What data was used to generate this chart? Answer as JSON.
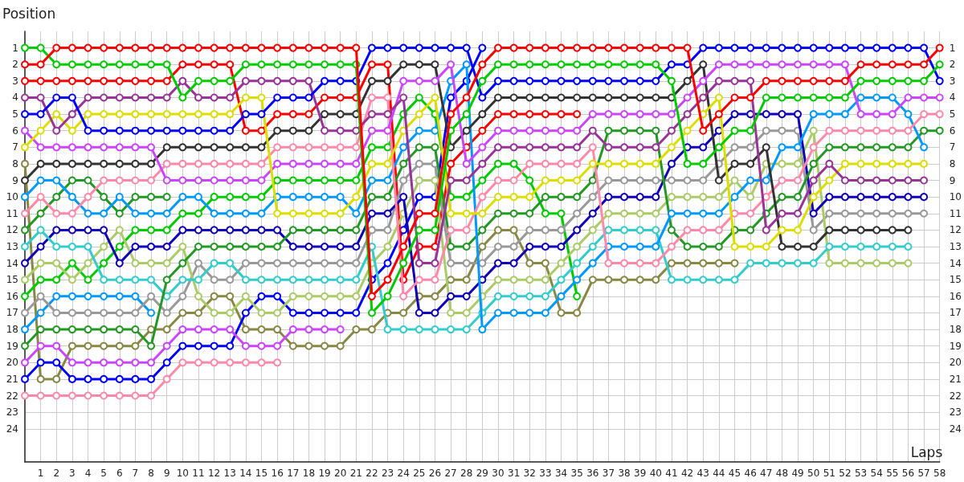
{
  "chart_data": {
    "type": "line",
    "xlabel": "Laps",
    "ylabel": "Position",
    "x": [
      0,
      1,
      2,
      3,
      4,
      5,
      6,
      7,
      8,
      9,
      10,
      11,
      12,
      13,
      14,
      15,
      16,
      17,
      18,
      19,
      20,
      21,
      22,
      23,
      24,
      25,
      26,
      27,
      28,
      29,
      30,
      31,
      32,
      33,
      34,
      35,
      36,
      37,
      38,
      39,
      40,
      41,
      42,
      43,
      44,
      45,
      46,
      47,
      48,
      49,
      50,
      51,
      52,
      53,
      54,
      55,
      56,
      57,
      58
    ],
    "xlim": [
      0,
      58
    ],
    "xticks": [
      1,
      2,
      3,
      4,
      5,
      6,
      7,
      8,
      9,
      10,
      11,
      12,
      13,
      14,
      15,
      16,
      17,
      18,
      19,
      20,
      21,
      22,
      23,
      24,
      25,
      26,
      27,
      28,
      29,
      30,
      31,
      32,
      33,
      34,
      35,
      36,
      37,
      38,
      39,
      40,
      41,
      42,
      43,
      44,
      45,
      46,
      47,
      48,
      49,
      50,
      51,
      52,
      53,
      54,
      55,
      56,
      57,
      58
    ],
    "ylim": [
      26,
      0
    ],
    "yticks": [
      1,
      2,
      3,
      4,
      5,
      6,
      7,
      8,
      9,
      10,
      11,
      12,
      13,
      14,
      15,
      16,
      17,
      18,
      19,
      20,
      21,
      22,
      23,
      24
    ],
    "y2lim": [
      26,
      0
    ],
    "y2ticks": [
      1,
      2,
      3,
      4,
      5,
      6,
      7,
      8,
      9,
      10,
      11,
      12,
      13,
      14,
      15,
      16,
      17,
      18,
      19,
      20,
      21,
      22,
      23,
      24
    ],
    "grid": true,
    "marker": "circle",
    "series": [
      {
        "color": "#888844",
        "values": [
          8,
          21,
          21,
          19,
          19,
          19,
          19,
          19,
          18,
          18,
          17,
          17,
          16,
          16,
          18,
          18,
          18,
          19,
          19,
          19,
          19,
          18,
          18,
          17,
          17,
          16,
          16,
          15,
          15,
          13,
          12,
          12,
          14,
          14,
          17,
          17,
          15,
          15,
          15,
          15,
          15,
          14,
          14,
          14,
          14,
          14,
          null,
          null,
          null,
          null,
          null,
          null,
          null,
          null,
          null,
          null,
          null,
          null,
          null
        ]
      },
      {
        "color": "#ff88aa",
        "values": [
          22,
          22,
          22,
          22,
          22,
          22,
          22,
          22,
          22,
          21,
          20,
          20,
          20,
          20,
          20,
          20,
          20,
          null,
          null,
          null,
          null,
          null,
          null,
          null,
          null,
          null,
          null,
          null,
          null,
          null,
          null,
          null,
          null,
          null,
          null,
          null,
          null,
          null,
          null,
          null,
          null,
          null,
          null,
          null,
          null,
          null,
          null,
          null,
          null,
          null,
          null,
          null,
          null,
          null,
          null,
          null,
          null,
          null,
          null
        ]
      },
      {
        "color": "#0000ff",
        "values": [
          21,
          20,
          20,
          21,
          21,
          21,
          21,
          21,
          21,
          20,
          19,
          19,
          19,
          19,
          17,
          16,
          16,
          17,
          17,
          17,
          17,
          17,
          15,
          14,
          12,
          10,
          10,
          4,
          3,
          1,
          null,
          null,
          null,
          null,
          null,
          null,
          null,
          null,
          null,
          null,
          null,
          null,
          null,
          null,
          null,
          null,
          null,
          null,
          null,
          null,
          null,
          null,
          null,
          null,
          null,
          null,
          null,
          null,
          null
        ]
      },
      {
        "color": "#cc44ff",
        "values": [
          20,
          19,
          19,
          20,
          20,
          20,
          20,
          20,
          20,
          19,
          18,
          18,
          18,
          18,
          19,
          19,
          19,
          18,
          18,
          18,
          18,
          null,
          null,
          null,
          null,
          null,
          null,
          null,
          null,
          null,
          null,
          null,
          null,
          null,
          null,
          null,
          null,
          null,
          null,
          null,
          null,
          null,
          null,
          null,
          null,
          null,
          null,
          null,
          null,
          null,
          null,
          null,
          null,
          null,
          null,
          null,
          null,
          null,
          null
        ]
      },
      {
        "color": "#0099ff",
        "values": [
          18,
          17,
          16,
          16,
          16,
          16,
          16,
          16,
          17,
          null,
          null,
          null,
          null,
          null,
          null,
          null,
          null,
          null,
          null,
          null,
          null,
          null,
          null,
          null,
          null,
          null,
          null,
          null,
          null,
          null,
          null,
          null,
          null,
          null,
          null,
          null,
          null,
          null,
          null,
          null,
          null,
          null,
          null,
          null,
          null,
          null,
          null,
          null,
          null,
          null,
          null,
          null,
          null,
          null,
          null,
          null,
          null,
          null,
          null
        ]
      },
      {
        "color": "#229922",
        "values": [
          12,
          11,
          10,
          9,
          9,
          10,
          11,
          10,
          10,
          10,
          null,
          null,
          null,
          null,
          null,
          null,
          null,
          null,
          null,
          null,
          null,
          null,
          null,
          null,
          null,
          null,
          null,
          null,
          null,
          null,
          null,
          null,
          null,
          null,
          null,
          null,
          null,
          null,
          null,
          null,
          null,
          null,
          null,
          null,
          null,
          null,
          null,
          null,
          null,
          null,
          null,
          null,
          null,
          null,
          null,
          null,
          null,
          null,
          null
        ]
      },
      {
        "color": "#00cc00",
        "values": [
          16,
          15,
          15,
          14,
          15,
          14,
          13,
          12,
          12,
          12,
          11,
          11,
          10,
          10,
          10,
          10,
          9,
          9,
          9,
          9,
          9,
          9,
          7,
          7,
          5,
          4,
          5,
          10,
          10,
          9,
          8,
          8,
          9,
          11,
          11,
          16,
          null,
          null,
          null,
          null,
          null,
          null,
          null,
          null,
          null,
          null,
          null,
          null,
          null,
          null,
          null,
          null,
          null,
          null,
          null,
          null,
          null,
          null,
          null
        ]
      },
      {
        "color": "#ff0000",
        "values": [
          3,
          3,
          3,
          3,
          3,
          3,
          3,
          3,
          3,
          3,
          2,
          2,
          2,
          2,
          6,
          6,
          5,
          5,
          5,
          4,
          4,
          4,
          2,
          2,
          15,
          13,
          13,
          8,
          7,
          6,
          5,
          5,
          5,
          5,
          5,
          5,
          null,
          null,
          null,
          null,
          null,
          null,
          null,
          null,
          null,
          null,
          null,
          null,
          null,
          null,
          null,
          null,
          null,
          null,
          null,
          null,
          null,
          null,
          null
        ]
      },
      {
        "color": "#999999",
        "values": [
          17,
          16,
          17,
          17,
          17,
          17,
          17,
          17,
          16,
          17,
          16,
          14,
          15,
          15,
          14,
          14,
          14,
          14,
          14,
          14,
          14,
          14,
          12,
          12,
          9,
          8,
          8,
          14,
          14,
          14,
          13,
          13,
          12,
          12,
          12,
          11,
          10,
          9,
          9,
          9,
          9,
          9,
          9,
          9,
          8,
          7,
          7,
          6,
          6,
          6,
          12,
          11,
          11,
          11,
          11,
          11,
          11,
          11,
          null
        ]
      },
      {
        "color": "#aacc66",
        "values": [
          15,
          14,
          14,
          15,
          14,
          13,
          12,
          14,
          14,
          14,
          13,
          16,
          17,
          17,
          16,
          17,
          17,
          16,
          16,
          16,
          16,
          16,
          14,
          13,
          11,
          9,
          9,
          17,
          17,
          16,
          15,
          15,
          15,
          15,
          14,
          13,
          12,
          11,
          11,
          11,
          11,
          10,
          10,
          10,
          10,
          9,
          10,
          8,
          8,
          8,
          6,
          14,
          14,
          14,
          14,
          14,
          14,
          null,
          null
        ]
      },
      {
        "color": "#1100bb",
        "values": [
          14,
          13,
          12,
          12,
          12,
          12,
          14,
          13,
          13,
          13,
          12,
          12,
          12,
          12,
          12,
          12,
          12,
          13,
          13,
          13,
          13,
          13,
          11,
          11,
          10,
          17,
          17,
          16,
          16,
          15,
          14,
          14,
          13,
          13,
          13,
          12,
          11,
          10,
          10,
          10,
          10,
          8,
          7,
          7,
          6,
          5,
          5,
          5,
          5,
          5,
          11,
          10,
          10,
          10,
          10,
          10,
          10,
          10,
          null
        ]
      },
      {
        "color": "#33cccc",
        "values": [
          13,
          12,
          13,
          13,
          13,
          15,
          15,
          15,
          15,
          16,
          15,
          15,
          14,
          14,
          15,
          15,
          15,
          15,
          15,
          15,
          15,
          15,
          13,
          18,
          18,
          18,
          18,
          18,
          18,
          17,
          16,
          16,
          16,
          16,
          15,
          14,
          13,
          12,
          12,
          12,
          12,
          15,
          15,
          15,
          15,
          15,
          14,
          14,
          14,
          14,
          14,
          13,
          13,
          13,
          13,
          13,
          13,
          null,
          null
        ]
      },
      {
        "color": "#229922",
        "values": [
          19,
          18,
          18,
          18,
          18,
          18,
          18,
          18,
          19,
          15,
          14,
          13,
          13,
          13,
          13,
          13,
          13,
          12,
          12,
          12,
          12,
          12,
          10,
          10,
          8,
          7,
          7,
          13,
          13,
          12,
          11,
          11,
          11,
          10,
          10,
          10,
          9,
          6,
          6,
          6,
          6,
          12,
          13,
          13,
          13,
          12,
          12,
          11,
          10,
          10,
          8,
          7,
          7,
          7,
          7,
          7,
          7,
          6,
          6
        ]
      },
      {
        "color": "#0099ff",
        "values": [
          10,
          9,
          9,
          10,
          11,
          11,
          10,
          11,
          11,
          11,
          10,
          10,
          11,
          11,
          11,
          11,
          10,
          10,
          10,
          10,
          10,
          11,
          9,
          9,
          7,
          6,
          6,
          3,
          2,
          18,
          17,
          17,
          17,
          17,
          16,
          15,
          14,
          13,
          13,
          13,
          13,
          11,
          11,
          11,
          11,
          10,
          9,
          9,
          7,
          7,
          5,
          5,
          5,
          4,
          4,
          4,
          5,
          7,
          null
        ]
      },
      {
        "color": "#ff88aa",
        "values": [
          11,
          10,
          11,
          11,
          10,
          9,
          9,
          9,
          9,
          8,
          8,
          8,
          8,
          8,
          8,
          8,
          7,
          7,
          7,
          7,
          7,
          7,
          4,
          4,
          16,
          15,
          15,
          12,
          12,
          10,
          9,
          9,
          8,
          8,
          8,
          8,
          7,
          14,
          14,
          14,
          14,
          13,
          12,
          12,
          12,
          11,
          11,
          10,
          9,
          9,
          7,
          6,
          6,
          6,
          6,
          6,
          6,
          5,
          5
        ]
      },
      {
        "color": "#333333",
        "values": [
          9,
          8,
          8,
          8,
          8,
          8,
          8,
          8,
          8,
          7,
          7,
          7,
          7,
          7,
          7,
          7,
          6,
          6,
          6,
          5,
          5,
          5,
          3,
          3,
          2,
          2,
          2,
          7,
          6,
          5,
          4,
          4,
          4,
          4,
          4,
          4,
          4,
          4,
          4,
          4,
          4,
          4,
          3,
          2,
          9,
          8,
          8,
          7,
          13,
          13,
          13,
          12,
          12,
          12,
          12,
          12,
          12,
          null,
          null
        ]
      },
      {
        "color": "#cc44ff",
        "values": [
          6,
          7,
          7,
          7,
          7,
          7,
          7,
          7,
          7,
          9,
          9,
          9,
          9,
          9,
          9,
          9,
          8,
          8,
          8,
          8,
          8,
          8,
          6,
          6,
          3,
          3,
          3,
          2,
          8,
          7,
          6,
          6,
          6,
          6,
          6,
          6,
          5,
          5,
          5,
          5,
          5,
          5,
          4,
          3,
          2,
          2,
          2,
          2,
          2,
          2,
          2,
          2,
          2,
          5,
          5,
          5,
          4,
          4,
          4
        ]
      },
      {
        "color": "#dddd00",
        "values": [
          7,
          6,
          5,
          6,
          5,
          5,
          5,
          5,
          5,
          5,
          5,
          5,
          5,
          5,
          4,
          4,
          11,
          11,
          11,
          11,
          11,
          10,
          8,
          8,
          6,
          5,
          4,
          11,
          11,
          11,
          10,
          10,
          10,
          9,
          9,
          9,
          8,
          8,
          8,
          8,
          8,
          7,
          6,
          5,
          4,
          13,
          13,
          13,
          12,
          12,
          10,
          9,
          8,
          8,
          8,
          8,
          8,
          8,
          null
        ]
      },
      {
        "color": "#993399",
        "values": [
          4,
          4,
          6,
          5,
          4,
          4,
          4,
          4,
          4,
          4,
          3,
          4,
          4,
          4,
          3,
          3,
          3,
          3,
          3,
          6,
          6,
          6,
          5,
          5,
          4,
          14,
          14,
          9,
          9,
          8,
          7,
          7,
          7,
          7,
          7,
          7,
          6,
          7,
          7,
          7,
          7,
          6,
          5,
          4,
          3,
          3,
          3,
          12,
          11,
          11,
          9,
          8,
          9,
          9,
          9,
          9,
          9,
          9,
          null
        ]
      },
      {
        "color": "#0000ff",
        "values": [
          5,
          5,
          4,
          4,
          6,
          6,
          6,
          6,
          6,
          6,
          6,
          6,
          6,
          6,
          5,
          5,
          4,
          4,
          4,
          3,
          3,
          3,
          1,
          1,
          1,
          1,
          1,
          1,
          1,
          4,
          3,
          3,
          3,
          3,
          3,
          3,
          3,
          3,
          3,
          3,
          3,
          2,
          2,
          1,
          1,
          1,
          1,
          1,
          1,
          1,
          1,
          1,
          1,
          1,
          1,
          1,
          1,
          1,
          3
        ]
      },
      {
        "color": "#00cc00",
        "values": [
          1,
          1,
          2,
          2,
          2,
          2,
          2,
          2,
          2,
          2,
          4,
          3,
          3,
          3,
          2,
          2,
          2,
          2,
          2,
          2,
          2,
          2,
          17,
          16,
          14,
          12,
          12,
          6,
          5,
          3,
          2,
          2,
          2,
          2,
          2,
          2,
          2,
          2,
          2,
          2,
          2,
          3,
          8,
          8,
          7,
          6,
          6,
          4,
          4,
          4,
          4,
          4,
          4,
          3,
          3,
          3,
          3,
          3,
          2
        ]
      },
      {
        "color": "#ff0000",
        "values": [
          2,
          2,
          1,
          1,
          1,
          1,
          1,
          1,
          1,
          1,
          1,
          1,
          1,
          1,
          1,
          1,
          1,
          1,
          1,
          1,
          1,
          1,
          16,
          15,
          13,
          11,
          11,
          5,
          4,
          2,
          1,
          1,
          1,
          1,
          1,
          1,
          1,
          1,
          1,
          1,
          1,
          1,
          1,
          6,
          5,
          4,
          4,
          3,
          3,
          3,
          3,
          3,
          3,
          2,
          2,
          2,
          2,
          2,
          1
        ]
      }
    ]
  }
}
